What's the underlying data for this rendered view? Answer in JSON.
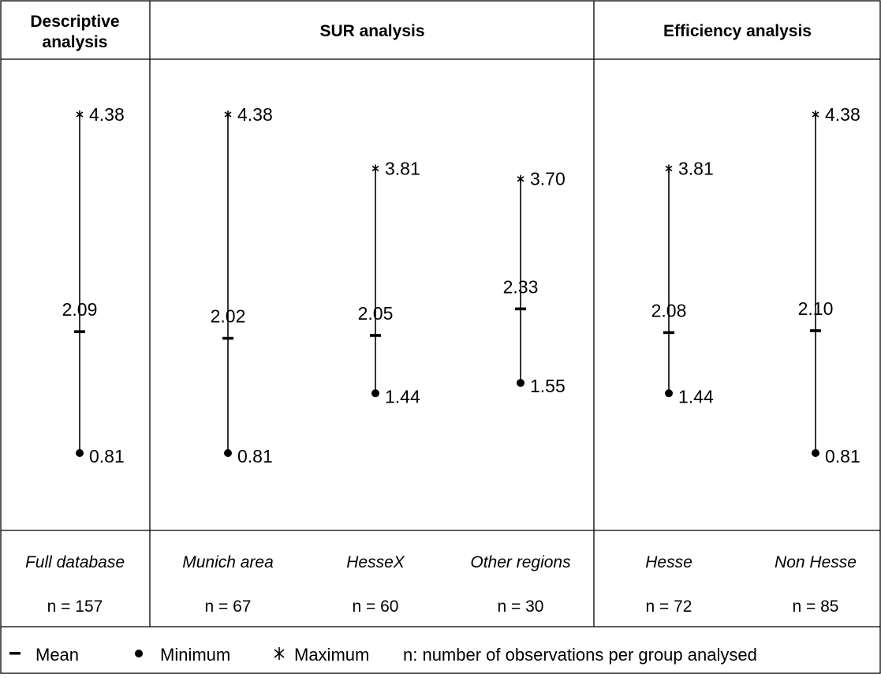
{
  "headers": {
    "descriptive_line1": "Descriptive",
    "descriptive_line2": "analysis",
    "sur": "SUR analysis",
    "efficiency": "Efficiency analysis"
  },
  "legend": {
    "mean": "Mean",
    "minimum": "Minimum",
    "maximum": "Maximum",
    "note": "n: number of observations per group analysed"
  },
  "chart_data": {
    "type": "range",
    "y_range": [
      0.81,
      4.38
    ],
    "groups": [
      {
        "label": "Full database",
        "n_label": "n = 157",
        "min": 0.81,
        "mean": 2.09,
        "max": 4.38,
        "min_label": "0.81",
        "mean_label": "2.09",
        "max_label": "4.38",
        "section": "Descriptive analysis"
      },
      {
        "label": "Munich area",
        "n_label": "n = 67",
        "min": 0.81,
        "mean": 2.02,
        "max": 4.38,
        "min_label": "0.81",
        "mean_label": "2.02",
        "max_label": "4.38",
        "section": "SUR analysis"
      },
      {
        "label": "HesseX",
        "n_label": "n = 60",
        "min": 1.44,
        "mean": 2.05,
        "max": 3.81,
        "min_label": "1.44",
        "mean_label": "2.05",
        "max_label": "3.81",
        "section": "SUR analysis"
      },
      {
        "label": "Other regions",
        "n_label": "n = 30",
        "min": 1.55,
        "mean": 2.33,
        "max": 3.7,
        "min_label": "1.55",
        "mean_label": "2.33",
        "max_label": "3.70",
        "section": "SUR analysis"
      },
      {
        "label": "Hesse",
        "n_label": "n = 72",
        "min": 1.44,
        "mean": 2.08,
        "max": 3.81,
        "min_label": "1.44",
        "mean_label": "2.08",
        "max_label": "3.81",
        "section": "Efficiency analysis"
      },
      {
        "label": "Non Hesse",
        "n_label": "n = 85",
        "min": 0.81,
        "mean": 2.1,
        "max": 4.38,
        "min_label": "0.81",
        "mean_label": "2.10",
        "max_label": "4.38",
        "section": "Efficiency analysis"
      }
    ]
  }
}
